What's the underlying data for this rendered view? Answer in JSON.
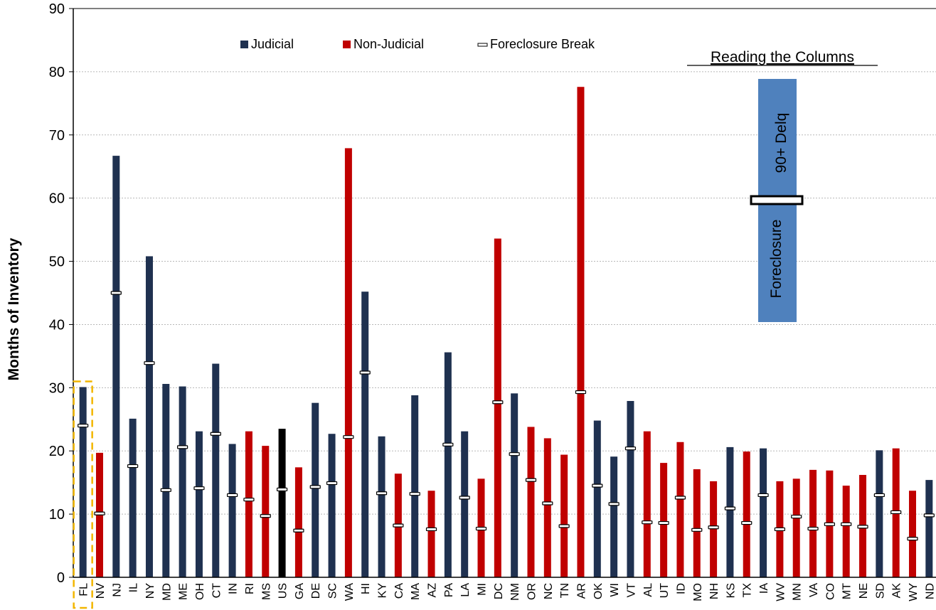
{
  "chart_data": {
    "type": "bar",
    "title": "",
    "xlabel": "",
    "ylabel": "Months of Inventory",
    "ylim": [
      0,
      90
    ],
    "yticks": [
      0,
      10,
      20,
      30,
      40,
      50,
      60,
      70,
      80,
      90
    ],
    "grid": true,
    "legend_placement": "top-center",
    "legend": [
      {
        "label": "Judicial",
        "color": "#1f3150",
        "kind": "square"
      },
      {
        "label": "Non-Judicial",
        "color": "#c00000",
        "kind": "square"
      },
      {
        "label": "Foreclosure Break",
        "color": "#ffffff",
        "kind": "break"
      }
    ],
    "highlight_category": "FL",
    "categories": [
      "FL",
      "NV",
      "NJ",
      "IL",
      "NY",
      "MD",
      "ME",
      "OH",
      "CT",
      "IN",
      "RI",
      "MS",
      "US",
      "GA",
      "DE",
      "SC",
      "WA",
      "HI",
      "KY",
      "CA",
      "MA",
      "AZ",
      "PA",
      "LA",
      "MI",
      "DC",
      "NM",
      "OR",
      "NC",
      "TN",
      "AR",
      "OK",
      "WI",
      "VT",
      "AL",
      "UT",
      "ID",
      "MO",
      "NH",
      "KS",
      "TX",
      "IA",
      "WV",
      "MN",
      "VA",
      "CO",
      "MT",
      "NE",
      "SD",
      "AK",
      "WY",
      "ND"
    ],
    "type_codes": [
      "J",
      "N",
      "J",
      "J",
      "J",
      "J",
      "J",
      "J",
      "J",
      "J",
      "N",
      "N",
      "U",
      "N",
      "J",
      "J",
      "N",
      "J",
      "J",
      "N",
      "J",
      "N",
      "J",
      "J",
      "N",
      "N",
      "J",
      "N",
      "N",
      "N",
      "N",
      "J",
      "J",
      "J",
      "N",
      "N",
      "N",
      "N",
      "N",
      "J",
      "N",
      "J",
      "N",
      "N",
      "N",
      "N",
      "N",
      "N",
      "J",
      "N",
      "N",
      "J"
    ],
    "values": [
      30.1,
      19.7,
      66.7,
      25.1,
      50.8,
      30.6,
      30.2,
      23.1,
      33.8,
      21.1,
      23.1,
      20.8,
      23.5,
      17.4,
      27.6,
      22.7,
      67.9,
      45.2,
      22.3,
      16.4,
      28.8,
      13.7,
      35.6,
      23.1,
      15.6,
      53.6,
      29.1,
      23.8,
      22.0,
      19.4,
      77.6,
      24.8,
      19.1,
      27.9,
      23.1,
      18.1,
      21.4,
      17.1,
      15.2,
      20.6,
      19.9,
      20.4,
      15.2,
      15.6,
      17.0,
      16.9,
      14.5,
      16.2,
      20.1,
      20.4,
      13.7,
      15.4
    ],
    "foreclosure_break": [
      24.0,
      10.1,
      45.0,
      17.6,
      33.9,
      13.8,
      20.6,
      14.1,
      22.7,
      13.0,
      12.3,
      9.7,
      13.9,
      7.4,
      14.3,
      14.9,
      22.2,
      32.4,
      13.3,
      8.2,
      13.2,
      7.6,
      21.0,
      12.6,
      7.7,
      27.7,
      19.5,
      15.4,
      11.7,
      8.1,
      29.3,
      14.5,
      11.6,
      20.4,
      8.7,
      8.6,
      12.6,
      7.5,
      7.9,
      10.9,
      8.6,
      13.0,
      7.6,
      9.6,
      7.7,
      8.4,
      8.4,
      8.0,
      13.0,
      10.3,
      6.1,
      9.8
    ],
    "series_colors": {
      "J": "#1f3150",
      "N": "#c00000",
      "U": "#000000"
    },
    "inset": {
      "title": "Reading the Columns",
      "top_label": "90+ Delq",
      "bottom_label": "Foreclosure",
      "color": "#4f81bd"
    }
  }
}
